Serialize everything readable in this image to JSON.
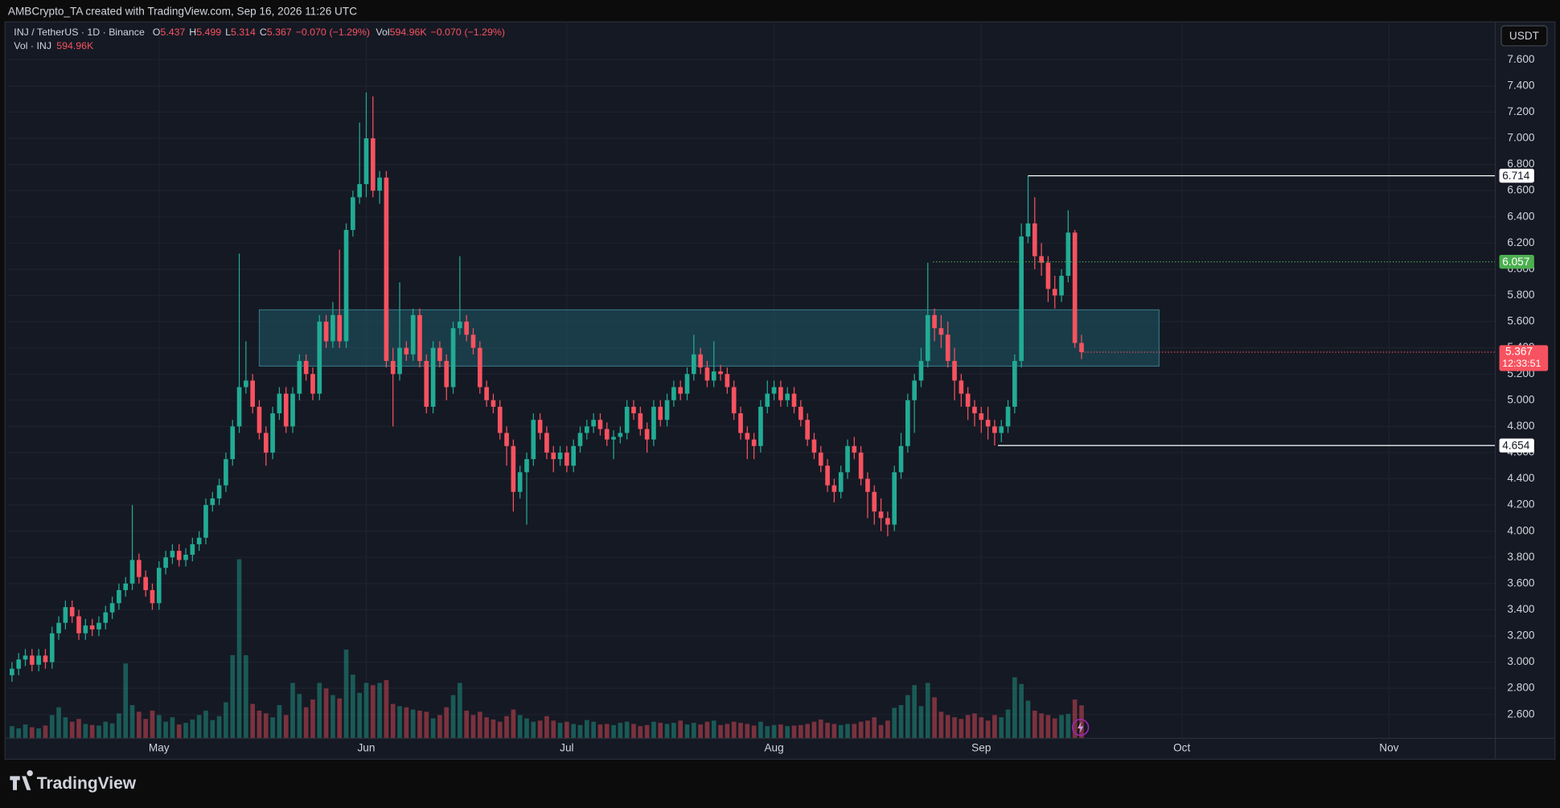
{
  "chart_data": {
    "type": "candlestick",
    "header": "AMBCrypto_TA created with TradingView.com, Sep 16, 2026 11:26 UTC",
    "legend": {
      "symbol": "INJ / TetherUS · 1D · Binance",
      "fields": [
        "O",
        "H",
        "L",
        "C"
      ],
      "change": "−0.070",
      "change_pct": "(−1.29%)",
      "vol_prefix": "Vol",
      "vol_value": "594.96K",
      "vol_series": "Vol · INJ"
    },
    "currency": "USDT",
    "countdown": "12:33:51",
    "brand": "TradingView",
    "up_color": "#22ab94",
    "down_color": "#f7525f",
    "xlim": [
      -0.6,
      221.9
    ],
    "xticks": [
      {
        "value": 22,
        "label": "May"
      },
      {
        "value": 53,
        "label": "Jun"
      },
      {
        "value": 83,
        "label": "Jul"
      },
      {
        "value": 114,
        "label": "Aug"
      },
      {
        "value": 145,
        "label": "Sep"
      },
      {
        "value": 175,
        "label": "Oct"
      },
      {
        "value": 206,
        "label": "Nov"
      }
    ],
    "ylim": [
      2.418,
      7.866
    ],
    "yticks": [
      {
        "value": 2.6,
        "label": "2.600"
      },
      {
        "value": 2.8,
        "label": "2.800"
      },
      {
        "value": 3.0,
        "label": "3.000"
      },
      {
        "value": 3.2,
        "label": "3.200"
      },
      {
        "value": 3.4,
        "label": "3.400"
      },
      {
        "value": 3.6,
        "label": "3.600"
      },
      {
        "value": 3.8,
        "label": "3.800"
      },
      {
        "value": 4.0,
        "label": "4.000"
      },
      {
        "value": 4.2,
        "label": "4.200"
      },
      {
        "value": 4.4,
        "label": "4.400"
      },
      {
        "value": 4.6,
        "label": "4.600"
      },
      {
        "value": 4.8,
        "label": "4.800"
      },
      {
        "value": 5.0,
        "label": "5.000"
      },
      {
        "value": 5.2,
        "label": "5.200"
      },
      {
        "value": 5.4,
        "label": "5.400"
      },
      {
        "value": 5.6,
        "label": "5.600"
      },
      {
        "value": 5.8,
        "label": "5.800"
      },
      {
        "value": 6.0,
        "label": "6.000"
      },
      {
        "value": 6.2,
        "label": "6.200"
      },
      {
        "value": 6.4,
        "label": "6.400"
      },
      {
        "value": 6.6,
        "label": "6.600"
      },
      {
        "value": 6.8,
        "label": "6.800"
      },
      {
        "value": 7.0,
        "label": "7.000"
      },
      {
        "value": 7.2,
        "label": "7.200"
      },
      {
        "value": 7.4,
        "label": "7.400"
      },
      {
        "value": 7.6,
        "label": "7.600"
      }
    ],
    "grid": true,
    "rectangle": {
      "start": 37,
      "end": 171.6,
      "low": 5.26,
      "high": 5.69,
      "color": "#1e5a66"
    },
    "levels": [
      {
        "value": 6.714,
        "start": 152,
        "color": "#ffffff",
        "style": "solid"
      },
      {
        "value": 6.057,
        "start": 137.8,
        "color": "#4caf50",
        "style": "dotted"
      },
      {
        "value": 4.654,
        "start": 147.5,
        "color": "#ffffff",
        "style": "solid"
      }
    ],
    "open": [
      2.9,
      2.95,
      3.02,
      3.05,
      2.98,
      3.05,
      3.0,
      3.22,
      3.3,
      3.42,
      3.35,
      3.22,
      3.28,
      3.25,
      3.3,
      3.38,
      3.45,
      3.55,
      3.6,
      3.78,
      3.65,
      3.55,
      3.45,
      3.72,
      3.8,
      3.85,
      3.78,
      3.82,
      3.9,
      3.95,
      4.2,
      4.25,
      4.35,
      4.55,
      4.8,
      5.1,
      5.15,
      4.95,
      4.75,
      4.6,
      4.9,
      5.05,
      4.8,
      5.05,
      5.3,
      5.2,
      5.05,
      5.6,
      5.45,
      5.65,
      5.45,
      6.3,
      6.55,
      6.65,
      7.0,
      6.6,
      6.7,
      5.3,
      5.2,
      5.4,
      5.35,
      5.65,
      5.3,
      4.95,
      5.4,
      5.3,
      5.1,
      5.55,
      5.6,
      5.5,
      5.4,
      5.1,
      5.0,
      4.95,
      4.75,
      4.65,
      4.3,
      4.45,
      4.55,
      4.85,
      4.75,
      4.6,
      4.55,
      4.6,
      4.5,
      4.65,
      4.75,
      4.8,
      4.85,
      4.78,
      4.7,
      4.72,
      4.75,
      4.95,
      4.9,
      4.78,
      4.7,
      4.95,
      4.85,
      5.0,
      5.1,
      5.05,
      5.2,
      5.35,
      5.25,
      5.15,
      5.22,
      5.2,
      5.1,
      4.9,
      4.75,
      4.7,
      4.65,
      4.95,
      5.05,
      5.1,
      5.0,
      5.05,
      4.95,
      4.85,
      4.7,
      4.6,
      4.5,
      4.35,
      4.3,
      4.45,
      4.65,
      4.6,
      4.4,
      4.3,
      4.15,
      4.1,
      4.05,
      4.45,
      4.65,
      5.0,
      5.15,
      5.3,
      5.65,
      5.55,
      5.5,
      5.3,
      5.15,
      5.05,
      4.95,
      4.9,
      4.85,
      4.8,
      4.75,
      4.8,
      4.95,
      5.3,
      6.25,
      6.35,
      6.1,
      6.05,
      5.85,
      5.8,
      5.95,
      6.28,
      5.437
    ],
    "high": [
      3.0,
      3.07,
      3.1,
      3.1,
      3.1,
      3.1,
      3.27,
      3.35,
      3.47,
      3.47,
      3.4,
      3.33,
      3.33,
      3.35,
      3.43,
      3.5,
      3.6,
      3.65,
      4.2,
      3.83,
      3.7,
      3.6,
      3.77,
      3.85,
      3.9,
      3.9,
      3.87,
      3.95,
      4.0,
      4.25,
      4.3,
      4.4,
      4.6,
      4.85,
      6.12,
      5.45,
      5.2,
      5.0,
      4.8,
      4.95,
      5.1,
      5.1,
      5.1,
      5.35,
      5.35,
      5.25,
      5.65,
      5.65,
      5.75,
      6.15,
      6.35,
      6.6,
      7.12,
      7.35,
      7.32,
      6.75,
      6.75,
      5.4,
      5.9,
      5.45,
      5.7,
      5.7,
      5.35,
      5.45,
      5.45,
      5.35,
      5.6,
      6.1,
      5.65,
      5.55,
      5.45,
      5.15,
      5.05,
      5.0,
      4.8,
      4.7,
      4.5,
      4.6,
      4.9,
      4.9,
      4.8,
      4.65,
      4.65,
      4.65,
      4.7,
      4.8,
      4.85,
      4.9,
      4.9,
      4.83,
      4.77,
      4.8,
      5.0,
      5.0,
      4.95,
      4.83,
      5.0,
      5.0,
      5.05,
      5.15,
      5.15,
      5.25,
      5.5,
      5.4,
      5.3,
      5.45,
      5.27,
      5.25,
      5.15,
      4.95,
      4.8,
      4.75,
      5.0,
      5.15,
      5.15,
      5.15,
      5.1,
      5.1,
      5.0,
      4.9,
      4.75,
      4.65,
      4.55,
      4.4,
      4.5,
      4.7,
      4.72,
      4.65,
      4.45,
      4.35,
      4.25,
      4.15,
      4.5,
      4.75,
      5.05,
      5.2,
      5.4,
      6.05,
      5.7,
      5.65,
      5.6,
      5.4,
      5.2,
      5.1,
      5.0,
      4.95,
      4.95,
      4.85,
      4.85,
      5.0,
      5.35,
      6.35,
      6.714,
      6.55,
      6.2,
      6.1,
      5.95,
      6.0,
      6.45,
      6.3,
      5.499
    ],
    "low": [
      2.85,
      2.9,
      2.97,
      2.93,
      2.93,
      2.95,
      2.95,
      3.17,
      3.25,
      3.3,
      3.17,
      3.17,
      3.2,
      3.2,
      3.25,
      3.33,
      3.4,
      3.5,
      3.55,
      3.6,
      3.5,
      3.4,
      3.4,
      3.67,
      3.75,
      3.73,
      3.73,
      3.77,
      3.85,
      3.9,
      4.15,
      4.2,
      4.3,
      4.5,
      4.75,
      5.05,
      4.9,
      4.7,
      4.5,
      4.55,
      4.85,
      4.75,
      4.75,
      5.0,
      5.15,
      5.0,
      5.0,
      5.4,
      5.4,
      5.4,
      5.4,
      6.25,
      6.5,
      6.55,
      6.55,
      6.5,
      5.25,
      4.8,
      5.15,
      5.3,
      5.3,
      5.25,
      4.9,
      4.9,
      5.25,
      5.0,
      5.05,
      5.5,
      5.45,
      5.35,
      5.05,
      4.95,
      4.9,
      4.7,
      4.5,
      4.15,
      4.25,
      4.05,
      4.5,
      4.7,
      4.55,
      4.45,
      4.5,
      4.45,
      4.45,
      4.6,
      4.7,
      4.75,
      4.73,
      4.65,
      4.55,
      4.67,
      4.7,
      4.85,
      4.73,
      4.6,
      4.65,
      4.8,
      4.8,
      4.95,
      5.0,
      5.0,
      5.15,
      5.2,
      5.1,
      5.1,
      5.15,
      5.05,
      4.85,
      4.7,
      4.55,
      4.55,
      4.6,
      4.9,
      5.0,
      4.95,
      4.95,
      4.9,
      4.8,
      4.65,
      4.55,
      4.45,
      4.3,
      4.22,
      4.25,
      4.4,
      4.55,
      4.35,
      4.1,
      4.05,
      4.0,
      3.96,
      4.0,
      4.4,
      4.6,
      4.75,
      5.1,
      5.25,
      5.45,
      5.4,
      5.25,
      5.0,
      4.95,
      4.85,
      4.8,
      4.75,
      4.7,
      4.654,
      4.68,
      4.75,
      4.9,
      5.25,
      6.2,
      6.0,
      5.95,
      5.75,
      5.7,
      5.75,
      5.9,
      5.4,
      5.314
    ],
    "close": [
      2.95,
      3.02,
      3.05,
      2.98,
      3.05,
      3.0,
      3.22,
      3.3,
      3.42,
      3.35,
      3.22,
      3.28,
      3.25,
      3.3,
      3.38,
      3.45,
      3.55,
      3.6,
      3.78,
      3.65,
      3.55,
      3.45,
      3.72,
      3.8,
      3.85,
      3.78,
      3.82,
      3.9,
      3.95,
      4.2,
      4.25,
      4.35,
      4.55,
      4.8,
      5.1,
      5.15,
      4.95,
      4.75,
      4.6,
      4.9,
      5.05,
      4.8,
      5.05,
      5.3,
      5.2,
      5.05,
      5.6,
      5.45,
      5.65,
      5.45,
      6.3,
      6.55,
      6.65,
      7.0,
      6.6,
      6.7,
      5.3,
      5.2,
      5.4,
      5.35,
      5.65,
      5.3,
      4.95,
      5.4,
      5.3,
      5.1,
      5.55,
      5.6,
      5.5,
      5.4,
      5.1,
      5.0,
      4.95,
      4.75,
      4.65,
      4.3,
      4.45,
      4.55,
      4.85,
      4.75,
      4.6,
      4.55,
      4.6,
      4.5,
      4.65,
      4.75,
      4.8,
      4.85,
      4.78,
      4.7,
      4.72,
      4.75,
      4.95,
      4.9,
      4.78,
      4.7,
      4.95,
      4.85,
      5.0,
      5.1,
      5.05,
      5.2,
      5.35,
      5.25,
      5.15,
      5.22,
      5.2,
      5.1,
      4.9,
      4.75,
      4.7,
      4.65,
      4.95,
      5.05,
      5.1,
      5.0,
      5.05,
      4.95,
      4.85,
      4.7,
      4.6,
      4.5,
      4.35,
      4.3,
      4.45,
      4.65,
      4.6,
      4.4,
      4.3,
      4.15,
      4.1,
      4.05,
      4.45,
      4.65,
      5.0,
      5.15,
      5.3,
      5.65,
      5.55,
      5.5,
      5.3,
      5.15,
      5.05,
      4.95,
      4.9,
      4.85,
      4.8,
      4.75,
      4.8,
      4.95,
      5.3,
      6.25,
      6.35,
      6.1,
      6.05,
      5.85,
      5.8,
      5.95,
      6.28,
      5.437,
      5.367
    ],
    "volume": [
      220,
      180,
      250,
      200,
      180,
      230,
      420,
      560,
      380,
      300,
      350,
      260,
      240,
      230,
      300,
      270,
      450,
      1350,
      600,
      480,
      350,
      500,
      420,
      300,
      380,
      250,
      280,
      340,
      420,
      500,
      330,
      400,
      650,
      1500,
      3230,
      1500,
      620,
      500,
      450,
      380,
      600,
      420,
      1000,
      800,
      560,
      700,
      1000,
      900,
      780,
      720,
      1600,
      1150,
      820,
      1000,
      960,
      1000,
      1050,
      620,
      580,
      560,
      520,
      500,
      480,
      360,
      420,
      560,
      780,
      1000,
      500,
      420,
      480,
      380,
      340,
      300,
      400,
      520,
      420,
      360,
      300,
      320,
      400,
      320,
      280,
      300,
      260,
      240,
      330,
      300,
      250,
      260,
      240,
      280,
      300,
      260,
      220,
      240,
      300,
      280,
      260,
      280,
      320,
      250,
      280,
      250,
      300,
      320,
      240,
      260,
      300,
      280,
      260,
      230,
      300,
      220,
      240,
      250,
      220,
      230,
      240,
      260,
      300,
      340,
      280,
      260,
      240,
      260,
      260,
      300,
      320,
      380,
      240,
      320,
      550,
      600,
      780,
      960,
      580,
      1000,
      740,
      480,
      420,
      380,
      350,
      420,
      450,
      380,
      320,
      420,
      380,
      520,
      1100,
      980,
      680,
      500,
      450,
      420,
      360,
      420,
      440,
      700,
      594.96
    ]
  }
}
